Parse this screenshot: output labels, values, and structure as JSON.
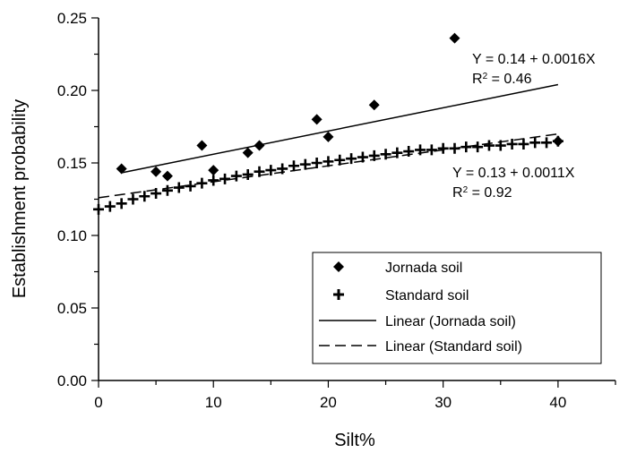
{
  "chart_data": {
    "type": "scatter",
    "xlabel": "Silt%",
    "ylabel": "Establishment probability",
    "xlim": [
      0,
      45
    ],
    "ylim": [
      0,
      0.25
    ],
    "x_ticks": [
      "0",
      "10",
      "20",
      "30",
      "40"
    ],
    "y_ticks": [
      "0.00",
      "0.05",
      "0.10",
      "0.15",
      "0.20",
      "0.25"
    ],
    "grid": false,
    "legend_position": "bottom-right",
    "series": [
      {
        "name": "Jornada soil",
        "marker": "diamond",
        "points": [
          [
            2,
            0.146
          ],
          [
            5,
            0.144
          ],
          [
            6,
            0.141
          ],
          [
            9,
            0.162
          ],
          [
            10,
            0.145
          ],
          [
            13,
            0.157
          ],
          [
            14,
            0.162
          ],
          [
            19,
            0.18
          ],
          [
            20,
            0.168
          ],
          [
            24,
            0.19
          ],
          [
            31,
            0.236
          ],
          [
            40,
            0.165
          ]
        ]
      },
      {
        "name": "Standard soil",
        "marker": "plus",
        "points": [
          [
            0,
            0.118
          ],
          [
            1,
            0.12
          ],
          [
            2,
            0.122
          ],
          [
            3,
            0.125
          ],
          [
            4,
            0.127
          ],
          [
            5,
            0.129
          ],
          [
            6,
            0.131
          ],
          [
            7,
            0.133
          ],
          [
            8,
            0.134
          ],
          [
            9,
            0.136
          ],
          [
            10,
            0.138
          ],
          [
            11,
            0.139
          ],
          [
            12,
            0.141
          ],
          [
            13,
            0.142
          ],
          [
            14,
            0.144
          ],
          [
            15,
            0.145
          ],
          [
            16,
            0.146
          ],
          [
            17,
            0.148
          ],
          [
            18,
            0.149
          ],
          [
            19,
            0.15
          ],
          [
            20,
            0.151
          ],
          [
            21,
            0.152
          ],
          [
            22,
            0.153
          ],
          [
            23,
            0.154
          ],
          [
            24,
            0.155
          ],
          [
            25,
            0.156
          ],
          [
            26,
            0.157
          ],
          [
            27,
            0.158
          ],
          [
            28,
            0.159
          ],
          [
            29,
            0.159
          ],
          [
            30,
            0.16
          ],
          [
            31,
            0.16
          ],
          [
            32,
            0.161
          ],
          [
            33,
            0.161
          ],
          [
            34,
            0.162
          ],
          [
            35,
            0.162
          ],
          [
            36,
            0.163
          ],
          [
            37,
            0.163
          ],
          [
            38,
            0.164
          ],
          [
            39,
            0.164
          ],
          [
            40,
            0.165
          ]
        ]
      }
    ],
    "trendlines": [
      {
        "name": "Linear (Jornada soil)",
        "style": "solid",
        "intercept": 0.14,
        "slope": 0.0016,
        "x_range": [
          2,
          40
        ]
      },
      {
        "name": "Linear (Standard soil)",
        "style": "dashed",
        "intercept": 0.126,
        "slope": 0.0011,
        "x_range": [
          0,
          40
        ]
      }
    ],
    "annotations": [
      {
        "id": "jornada",
        "line1": "Y = 0.14 +  0.0016X",
        "r2_prefix": "R",
        "r2_sup": "2",
        "r2_value": " = 0.46"
      },
      {
        "id": "standard",
        "line1": "Y = 0.13 + 0.0011X",
        "r2_prefix": "R",
        "r2_sup": "2",
        "r2_value": " = 0.92"
      }
    ]
  }
}
